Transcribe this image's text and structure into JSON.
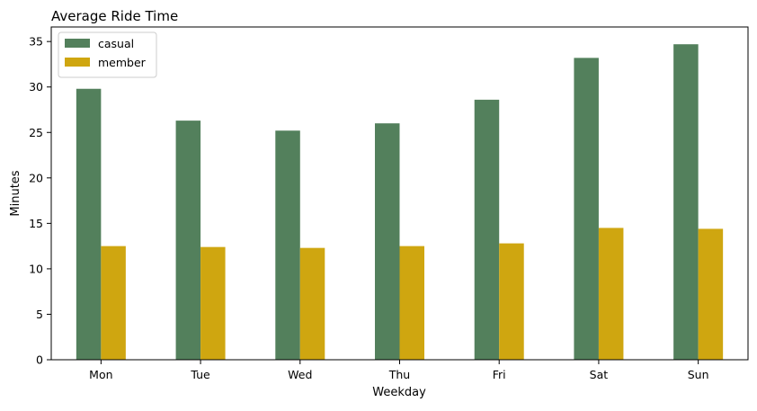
{
  "chart_data": {
    "type": "bar",
    "title": "Average Ride Time",
    "xlabel": "Weekday",
    "ylabel": "Minutes",
    "categories": [
      "Mon",
      "Tue",
      "Wed",
      "Thu",
      "Fri",
      "Sat",
      "Sun"
    ],
    "series": [
      {
        "name": "casual",
        "color": "#53805c",
        "values": [
          29.8,
          26.3,
          25.2,
          26.0,
          28.6,
          33.2,
          34.7
        ]
      },
      {
        "name": "member",
        "color": "#cfa610",
        "values": [
          12.5,
          12.4,
          12.3,
          12.5,
          12.8,
          14.5,
          14.4
        ]
      }
    ],
    "ylim": [
      0,
      36.6
    ],
    "yticks": [
      0,
      5,
      10,
      15,
      20,
      25,
      30,
      35
    ],
    "grid": false,
    "legend_position": "top-left"
  }
}
